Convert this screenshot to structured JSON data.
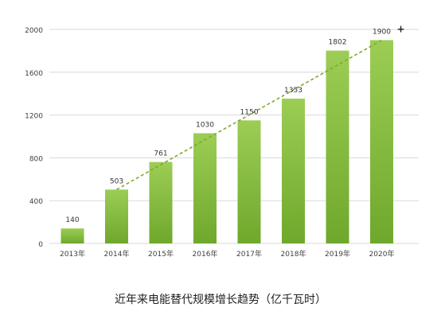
{
  "chart_data": {
    "type": "bar",
    "title": "近年来电能替代规模增长趋势（亿千瓦时）",
    "categories": [
      "2013年",
      "2014年",
      "2015年",
      "2016年",
      "2017年",
      "2018年",
      "2019年",
      "2020年"
    ],
    "values": [
      140,
      503,
      761,
      1030,
      1150,
      1353,
      1802,
      1900
    ],
    "data_labels": [
      "140",
      "503",
      "761",
      "1030",
      "1150",
      "1353",
      "1802",
      "1900"
    ],
    "annotation": "+",
    "trendline": {
      "style": "dashed",
      "from_category": "2014年",
      "to_category": "2020年",
      "values": [
        503,
        761,
        1030,
        1150,
        1353,
        1802,
        1900
      ]
    },
    "ylim": [
      0,
      2000
    ],
    "yticks": [
      0,
      400,
      800,
      1200,
      1600,
      2000
    ],
    "ytick_labels": [
      "0",
      "400",
      "800",
      "1200",
      "1600",
      "2000"
    ],
    "grid": "horizontal",
    "colors": {
      "bar_top": "#9ccd55",
      "bar_bottom": "#6fa82c",
      "trendline": "#7bab2f",
      "grid": "#d9d9d9",
      "axis_text": "#404040"
    }
  }
}
